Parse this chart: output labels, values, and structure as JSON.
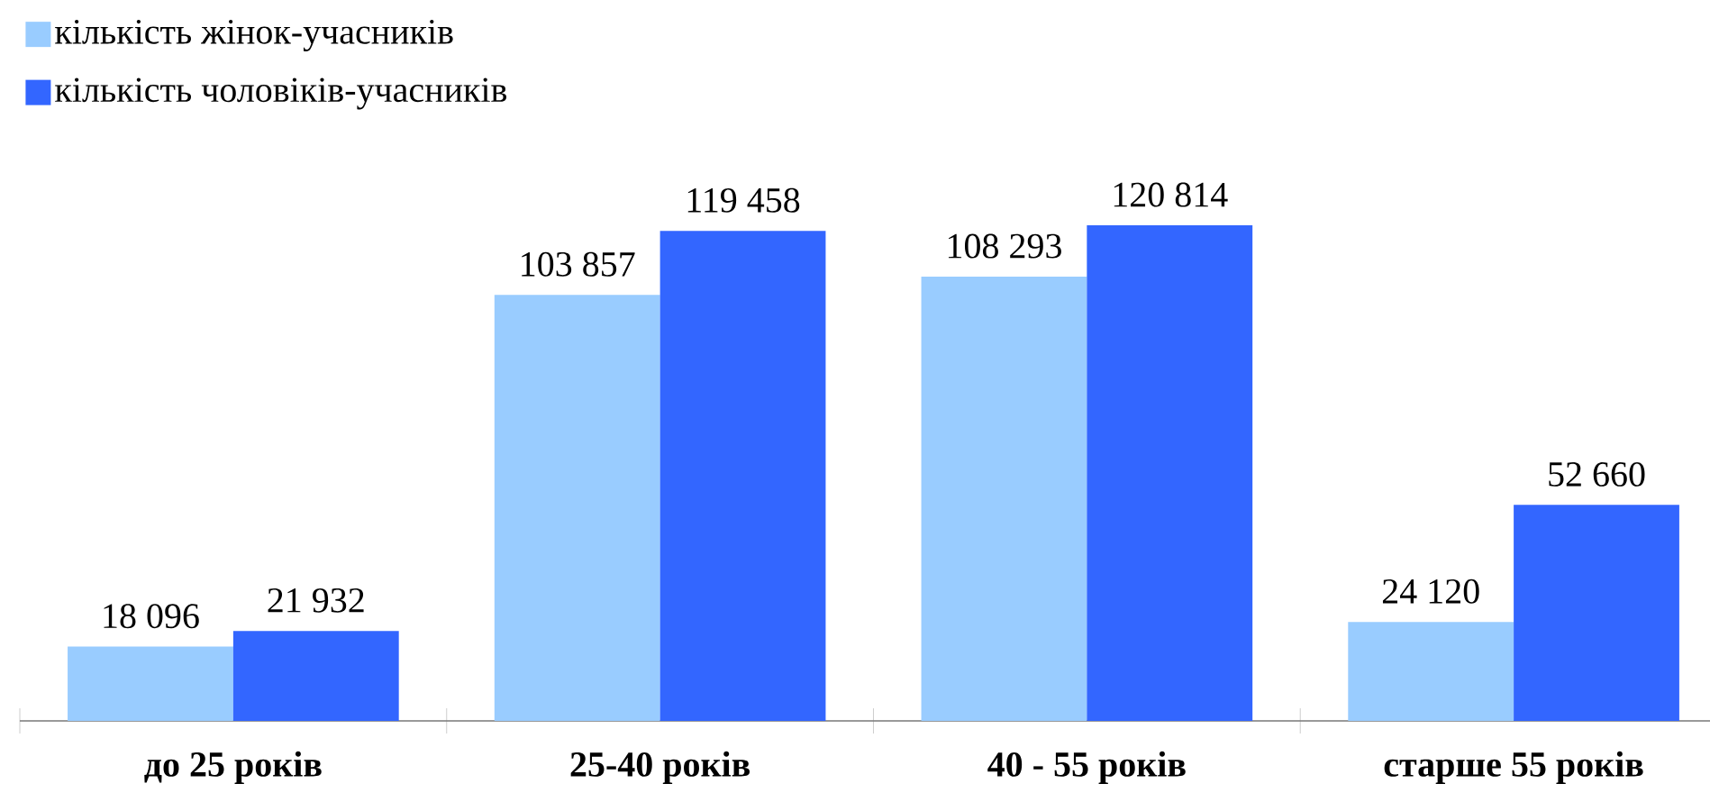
{
  "chart_data": {
    "type": "bar",
    "categories": [
      "до 25 років",
      "25-40 років",
      "40 - 55 років",
      "старше 55 років"
    ],
    "series": [
      {
        "name": "кількість жінок-учасників",
        "color": "#99ccff",
        "values": [
          18096,
          103857,
          108293,
          24120
        ],
        "value_labels": [
          "18 096",
          "103 857",
          "108 293",
          "24 120"
        ]
      },
      {
        "name": "кількість чоловіків-учасників",
        "color": "#3366ff",
        "values": [
          21932,
          119458,
          120814,
          52660
        ],
        "value_labels": [
          "21 932",
          "119 458",
          "120 814",
          "52 660"
        ]
      }
    ],
    "legend": "top left"
  }
}
